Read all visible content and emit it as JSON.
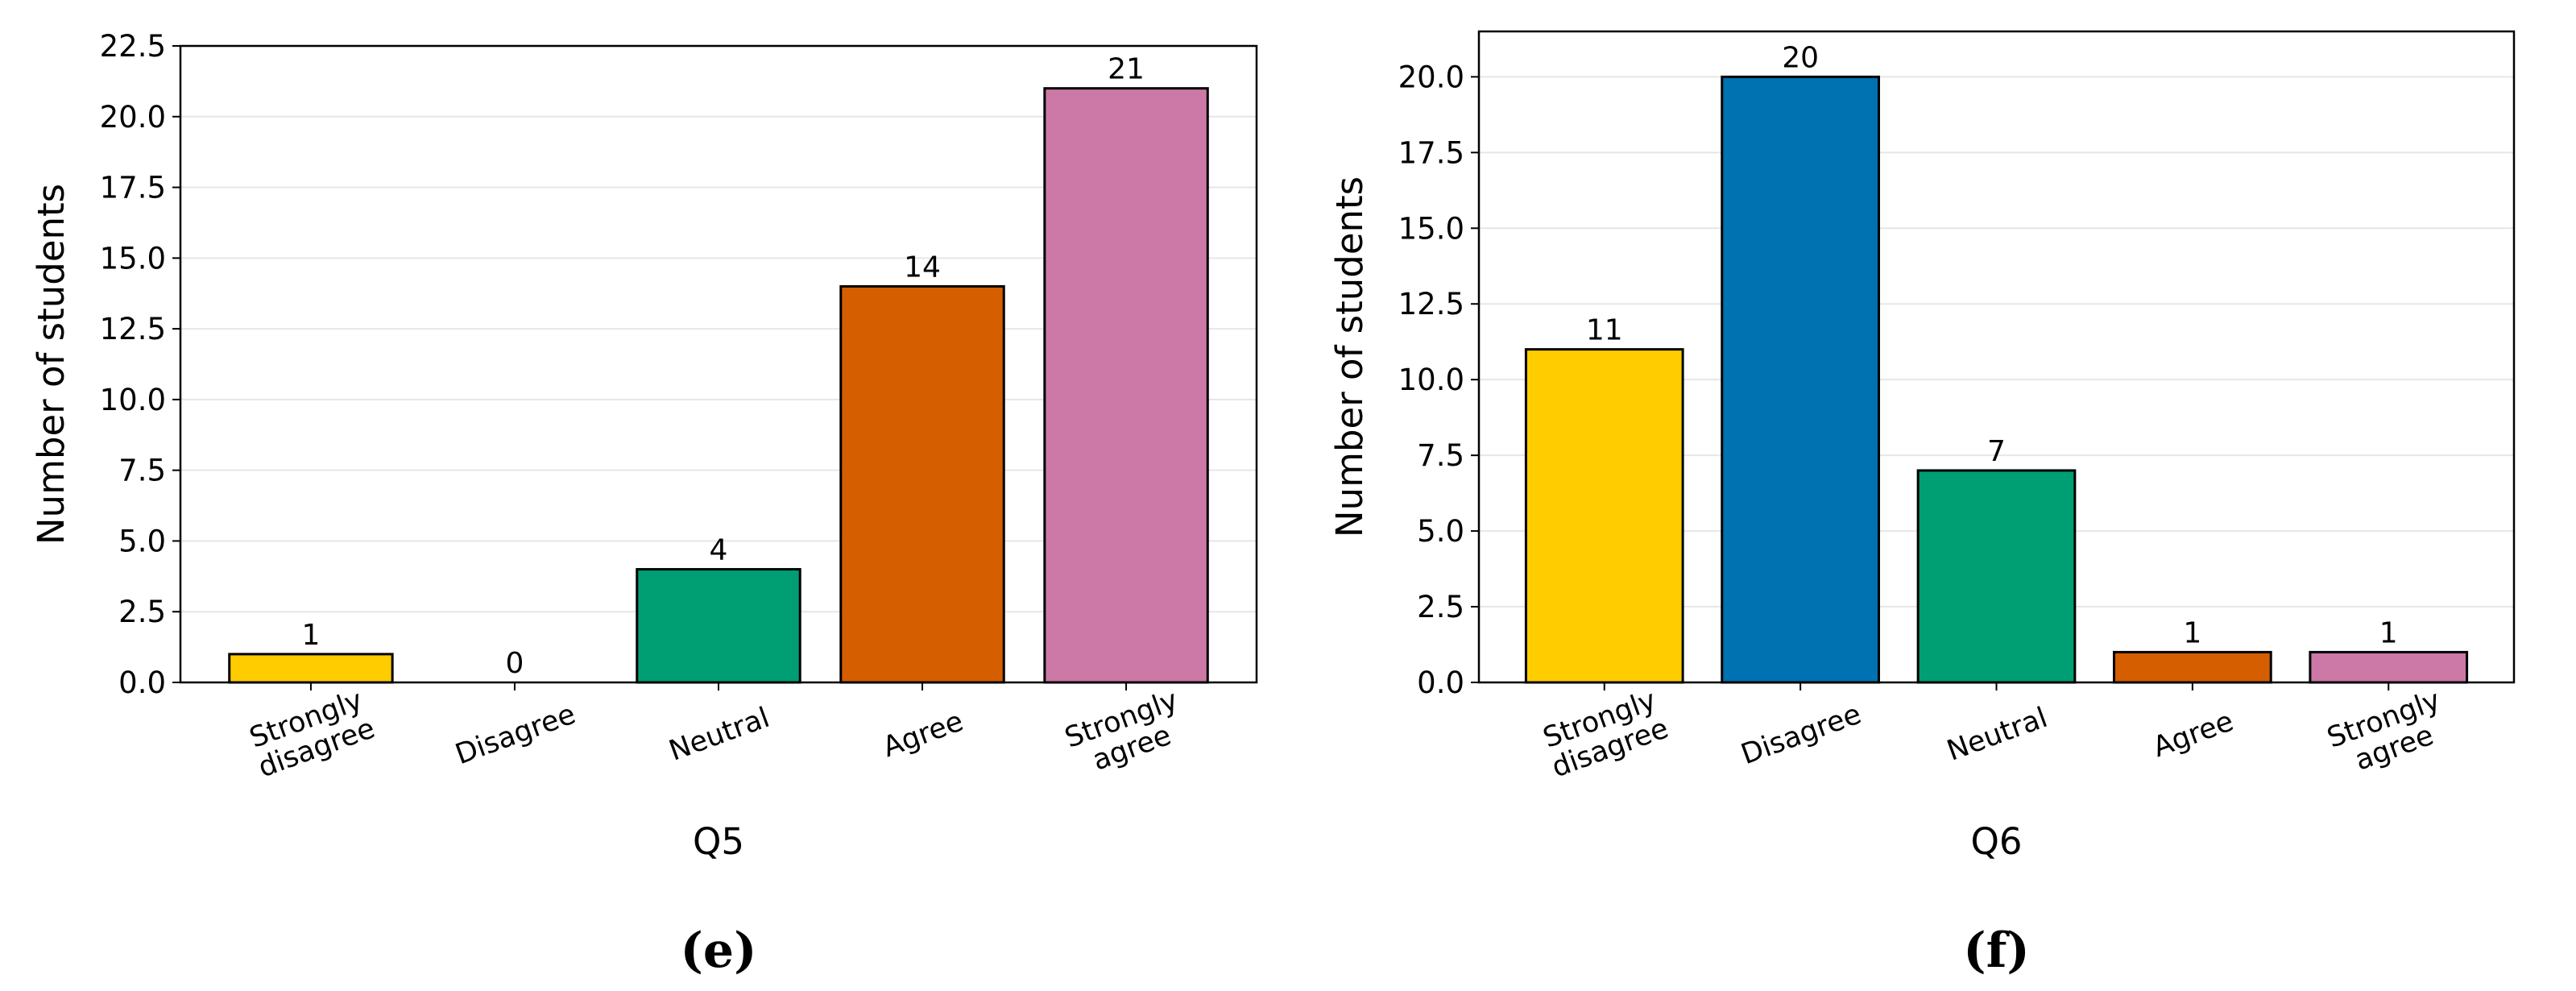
{
  "chart_data": [
    {
      "type": "bar",
      "categories": [
        "Strongly disagree",
        "Disagree",
        "Neutral",
        "Agree",
        "Strongly agree"
      ],
      "values": [
        1,
        0,
        4,
        14,
        21
      ],
      "colors": [
        "#FFCC00",
        "#0072B2",
        "#009E73",
        "#D55E00",
        "#CC79A7"
      ],
      "ylim": [
        0,
        22.5
      ],
      "yticks": [
        {
          "value": 0,
          "label": "0.0"
        },
        2.5,
        {
          "value": 5,
          "label": "5.0"
        },
        7.5,
        {
          "value": 10,
          "label": "10.0"
        },
        12.5,
        {
          "value": 15,
          "label": "15.0"
        },
        17.5,
        {
          "value": 20,
          "label": "20.0"
        },
        22.5
      ],
      "grid": true,
      "y_label": "Number of students",
      "x_label": "Q5",
      "caption": "(e)"
    },
    {
      "type": "bar",
      "categories": [
        "Strongly disagree",
        "Disagree",
        "Neutral",
        "Agree",
        "Strongly agree"
      ],
      "values": [
        11,
        20,
        7,
        1,
        1
      ],
      "colors": [
        "#FFCC00",
        "#0072B2",
        "#009E73",
        "#D55E00",
        "#CC79A7"
      ],
      "ylim": [
        0,
        21.5
      ],
      "yticks": [
        {
          "value": 0,
          "label": "0.0"
        },
        2.5,
        {
          "value": 5,
          "label": "5.0"
        },
        7.5,
        {
          "value": 10,
          "label": "10.0"
        },
        12.5,
        {
          "value": 15,
          "label": "15.0"
        },
        17.5,
        {
          "value": 20,
          "label": "20.0"
        }
      ],
      "grid": true,
      "y_label": "Number of students",
      "x_label": "Q6",
      "caption": "(f)"
    }
  ]
}
